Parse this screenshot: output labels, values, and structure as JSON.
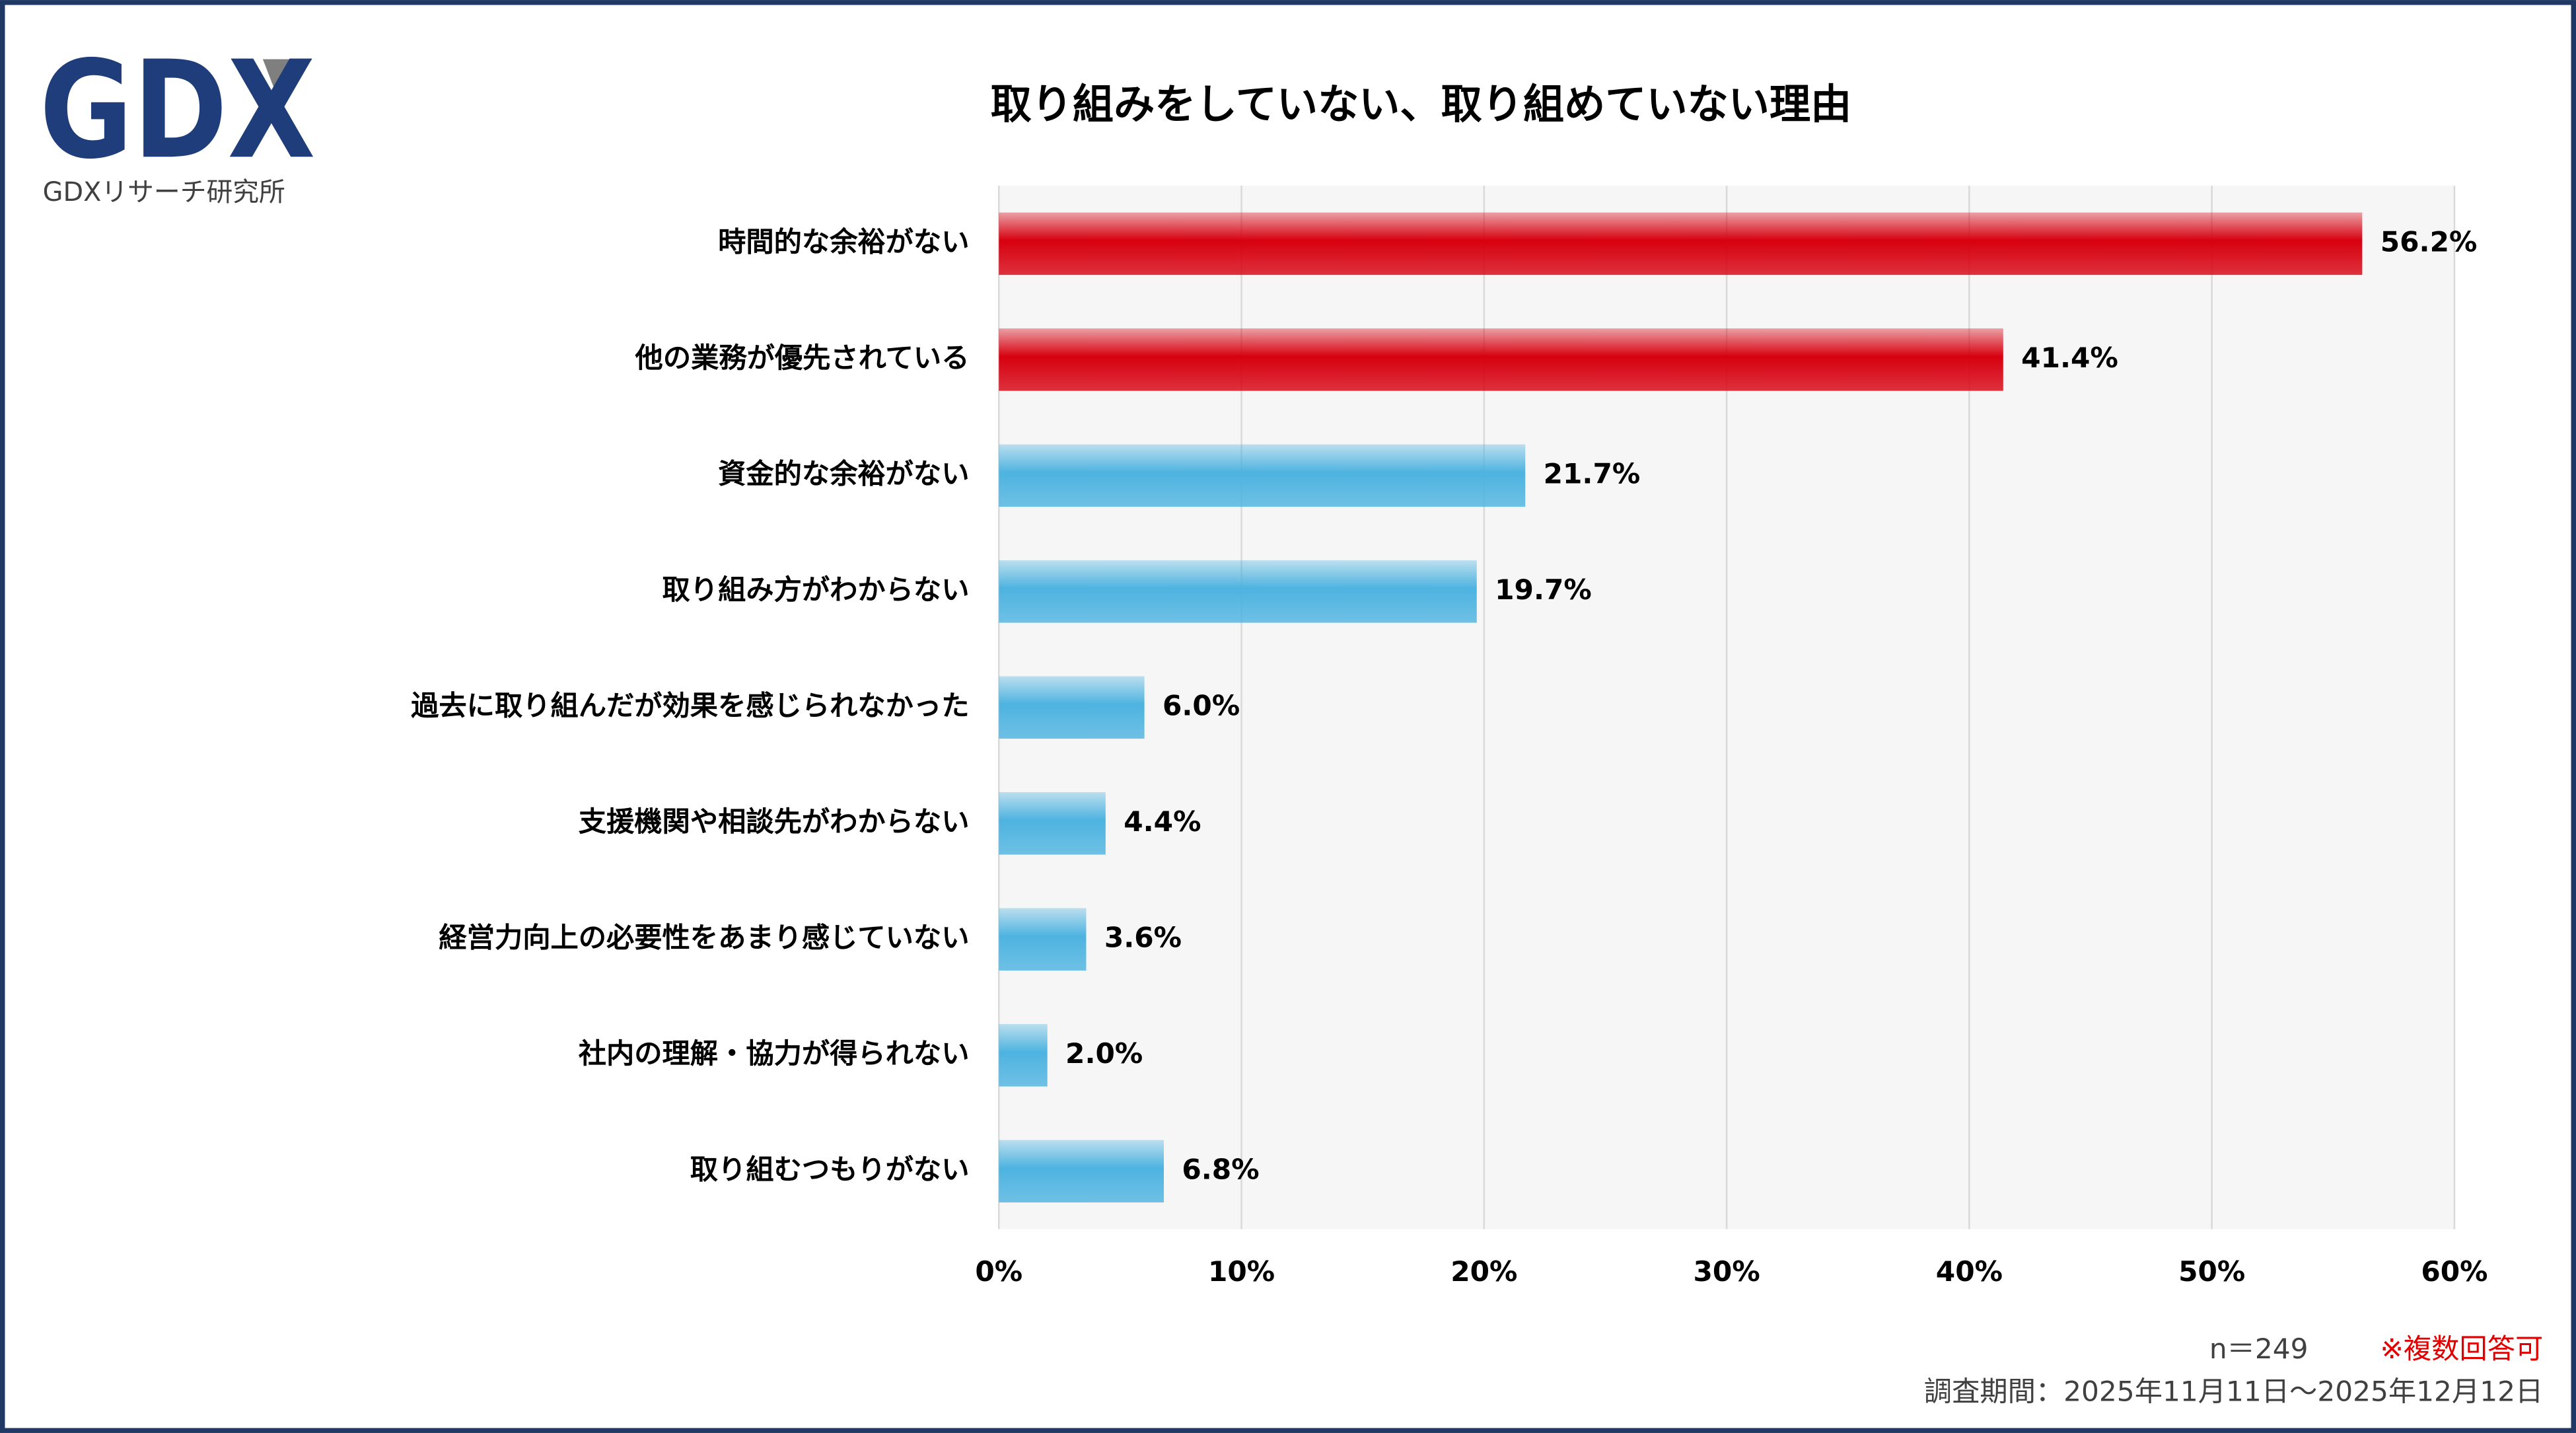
{
  "logo": {
    "mark": "GDX",
    "name": "GDXリサーチ研究所"
  },
  "chart_data": {
    "type": "hbar",
    "title": "取り組みをしていない、取り組めていない理由",
    "categories": [
      "時間的な余裕がない",
      "他の業務が優先されている",
      "資金的な余裕がない",
      "取り組み方がわからない",
      "過去に取り組んだが効果を感じられなかった",
      "支援機関や相談先がわからない",
      "経営力向上の必要性をあまり感じていない",
      "社内の理解・協力が得られない",
      "取り組むつもりがない"
    ],
    "values": [
      56.2,
      41.4,
      21.7,
      19.7,
      6.0,
      4.4,
      3.6,
      2.0,
      6.8
    ],
    "value_labels": [
      "56.2%",
      "41.4%",
      "21.7%",
      "19.7%",
      "6.0%",
      "4.4%",
      "3.6%",
      "2.0%",
      "6.8%"
    ],
    "colors": [
      "#d7000f",
      "#d7000f",
      "#4db3e0",
      "#4db3e0",
      "#4db3e0",
      "#4db3e0",
      "#4db3e0",
      "#4db3e0",
      "#4db3e0"
    ],
    "xlim": [
      0,
      60
    ],
    "xticks": [
      {
        "value": 0,
        "label": "0%"
      },
      {
        "value": 10,
        "label": "10%"
      },
      {
        "value": 20,
        "label": "20%"
      },
      {
        "value": 30,
        "label": "30%"
      },
      {
        "value": 40,
        "label": "40%"
      },
      {
        "value": 50,
        "label": "50%"
      },
      {
        "value": 60,
        "label": "60%"
      }
    ],
    "grid": true,
    "sample_size": "n＝249",
    "note": "※複数回答可",
    "period": "調査期間：2025年11月11日～2025年12月12日"
  }
}
